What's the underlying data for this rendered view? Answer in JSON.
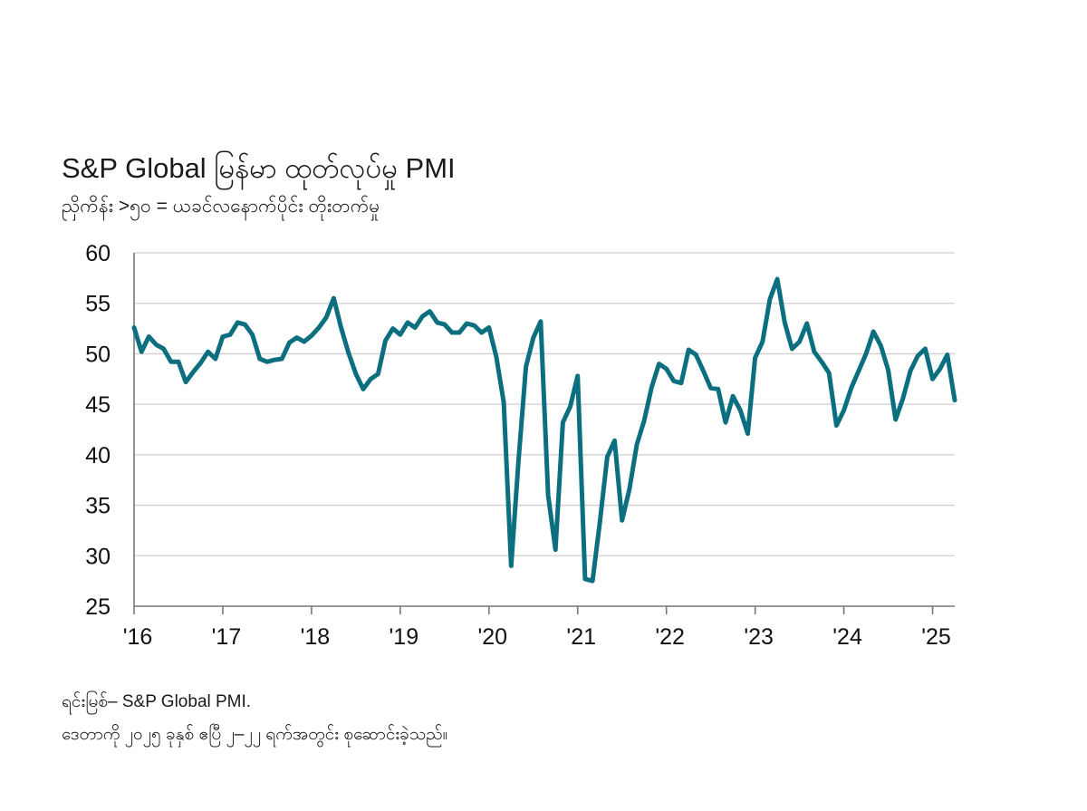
{
  "chart_data": {
    "type": "line",
    "title": "S&P Global မြန်မာ ထုတ်လုပ်မှု PMI",
    "subtitle": "ညှိကိန်း >၅၀ = ယခင်လနောက်ပိုင်း တိုးတက်မှု",
    "ylim": [
      25,
      60
    ],
    "yticks": [
      60,
      55,
      50,
      45,
      40,
      35,
      30,
      25
    ],
    "xlim": [
      2016.0,
      2025.25
    ],
    "xticks": [
      {
        "label": "'16",
        "value": 2016.0
      },
      {
        "label": "'17",
        "value": 2017.0
      },
      {
        "label": "'18",
        "value": 2018.0
      },
      {
        "label": "'19",
        "value": 2019.0
      },
      {
        "label": "'20",
        "value": 2020.0
      },
      {
        "label": "'21",
        "value": 2021.0
      },
      {
        "label": "'22",
        "value": 2022.0
      },
      {
        "label": "'23",
        "value": 2023.0
      },
      {
        "label": "'24",
        "value": 2024.0
      },
      {
        "label": "'25",
        "value": 2025.0
      }
    ],
    "grid": true,
    "line_color": "#0b6f7f",
    "series": [
      {
        "name": "Myanmar Manufacturing PMI",
        "start": 2016.0,
        "step_months": 1,
        "values": [
          52.6,
          50.2,
          51.7,
          50.9,
          50.5,
          49.2,
          49.2,
          47.2,
          48.2,
          49.1,
          50.2,
          49.5,
          51.7,
          51.9,
          53.1,
          52.9,
          51.9,
          49.5,
          49.2,
          49.4,
          49.5,
          51.1,
          51.6,
          51.2,
          51.8,
          52.6,
          53.6,
          55.5,
          52.6,
          50.1,
          48.0,
          46.5,
          47.5,
          48.0,
          51.3,
          52.5,
          51.9,
          53.1,
          52.6,
          53.7,
          54.2,
          53.1,
          52.9,
          52.1,
          52.1,
          53.0,
          52.8,
          52.1,
          52.6,
          49.7,
          45.2,
          29.0,
          39.4,
          48.7,
          51.6,
          53.2,
          36.0,
          30.6,
          43.2,
          44.8,
          47.8,
          27.7,
          27.5,
          33.3,
          39.8,
          41.4,
          33.5,
          36.6,
          41.0,
          43.4,
          46.7,
          49.0,
          48.5,
          47.3,
          47.1,
          50.4,
          49.9,
          48.3,
          46.6,
          46.5,
          43.2,
          45.8,
          44.4,
          42.1,
          49.6,
          51.2,
          55.4,
          57.4,
          53.1,
          50.5,
          51.2,
          53.0,
          50.2,
          49.2,
          48.1,
          42.9,
          44.4,
          46.6,
          48.3,
          50.0,
          52.2,
          50.8,
          48.4,
          43.5,
          45.6,
          48.3,
          49.8,
          50.5,
          47.5,
          48.5,
          49.9,
          45.4
        ]
      }
    ]
  },
  "footer": {
    "source": "ရင်းမြစ်– S&P Global PMI.",
    "note": "ဒေတာကို ၂၀၂၅ ခုနှစ် ဧပြီ ၂–၂၂ ရက်အတွင်း စုဆောင်းခဲ့သည်။"
  }
}
